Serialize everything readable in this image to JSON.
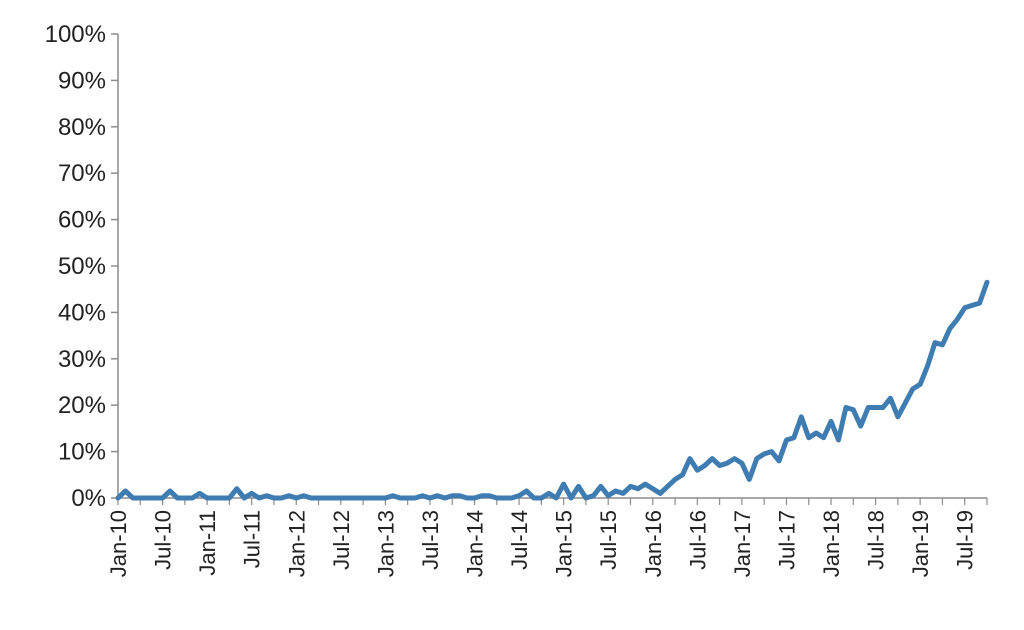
{
  "chart_data": {
    "type": "line",
    "title": "",
    "xlabel": "",
    "ylabel": "",
    "ylim": [
      0,
      100
    ],
    "y_ticks": [
      "0%",
      "10%",
      "20%",
      "30%",
      "40%",
      "50%",
      "60%",
      "70%",
      "80%",
      "90%",
      "100%"
    ],
    "x_range": [
      "2010-01",
      "2019-10"
    ],
    "x_ticks": [
      "Jan-10",
      "Jul-10",
      "Jan-11",
      "Jul-11",
      "Jan-12",
      "Jul-12",
      "Jan-13",
      "Jul-13",
      "Jan-14",
      "Jul-14",
      "Jan-15",
      "Jul-15",
      "Jan-16",
      "Jul-16",
      "Jan-17",
      "Jul-17",
      "Jan-18",
      "Jul-18",
      "Jan-19",
      "Jul-19"
    ],
    "grid": false,
    "legend": "none",
    "line_color": "#3e7cb1",
    "series": [
      {
        "x": [
          "2010-01",
          "2010-02",
          "2010-03",
          "2010-04",
          "2010-05",
          "2010-06",
          "2010-07",
          "2010-08",
          "2010-09",
          "2010-10",
          "2010-11",
          "2010-12",
          "2011-01",
          "2011-02",
          "2011-03",
          "2011-04",
          "2011-05",
          "2011-06",
          "2011-07",
          "2011-08",
          "2011-09",
          "2011-10",
          "2011-11",
          "2011-12",
          "2012-01",
          "2012-02",
          "2012-03",
          "2012-04",
          "2012-05",
          "2012-06",
          "2012-07",
          "2012-08",
          "2012-09",
          "2012-10",
          "2012-11",
          "2012-12",
          "2013-01",
          "2013-02",
          "2013-03",
          "2013-04",
          "2013-05",
          "2013-06",
          "2013-07",
          "2013-08",
          "2013-09",
          "2013-10",
          "2013-11",
          "2013-12",
          "2014-01",
          "2014-02",
          "2014-03",
          "2014-04",
          "2014-05",
          "2014-06",
          "2014-07",
          "2014-08",
          "2014-09",
          "2014-10",
          "2014-11",
          "2014-12",
          "2015-01",
          "2015-02",
          "2015-03",
          "2015-04",
          "2015-05",
          "2015-06",
          "2015-07",
          "2015-08",
          "2015-09",
          "2015-10",
          "2015-11",
          "2015-12",
          "2016-01",
          "2016-02",
          "2016-03",
          "2016-04",
          "2016-05",
          "2016-06",
          "2016-07",
          "2016-08",
          "2016-09",
          "2016-10",
          "2016-11",
          "2016-12",
          "2017-01",
          "2017-02",
          "2017-03",
          "2017-04",
          "2017-05",
          "2017-06",
          "2017-07",
          "2017-08",
          "2017-09",
          "2017-10",
          "2017-11",
          "2017-12",
          "2018-01",
          "2018-02",
          "2018-03",
          "2018-04",
          "2018-05",
          "2018-06",
          "2018-07",
          "2018-08",
          "2018-09",
          "2018-10",
          "2018-11",
          "2018-12",
          "2019-01",
          "2019-02",
          "2019-03",
          "2019-04",
          "2019-05",
          "2019-06",
          "2019-07",
          "2019-08",
          "2019-09",
          "2019-10"
        ],
        "values": [
          0,
          1.5,
          0,
          0,
          0,
          0,
          0,
          1.5,
          0,
          0,
          0,
          1,
          0,
          0,
          0,
          0,
          2,
          0,
          1,
          0,
          0.5,
          0,
          0,
          0.5,
          0,
          0.5,
          0,
          0,
          0,
          0,
          0,
          0,
          0,
          0,
          0,
          0,
          0,
          0.5,
          0,
          0,
          0,
          0.5,
          0,
          0.5,
          0,
          0.5,
          0.5,
          0,
          0,
          0.5,
          0.5,
          0,
          0,
          0,
          0.5,
          1.5,
          0,
          0,
          1,
          0,
          3,
          0,
          2.5,
          0,
          0.5,
          2.5,
          0.5,
          1.5,
          1,
          2.5,
          2,
          3,
          2,
          1,
          2.5,
          4,
          5,
          8.5,
          6,
          7,
          8.5,
          7,
          7.5,
          8.5,
          7.5,
          4,
          8.5,
          9.5,
          10,
          8,
          12.5,
          13,
          17.5,
          13,
          14,
          13,
          16.5,
          12.5,
          19.5,
          19,
          15.5,
          19.5,
          19.5,
          19.5,
          21.5,
          17.5,
          20.5,
          23.5,
          24.5,
          28.5,
          33.5,
          33,
          36.5,
          38.5,
          41,
          41.5,
          42,
          46.5
        ]
      }
    ]
  }
}
